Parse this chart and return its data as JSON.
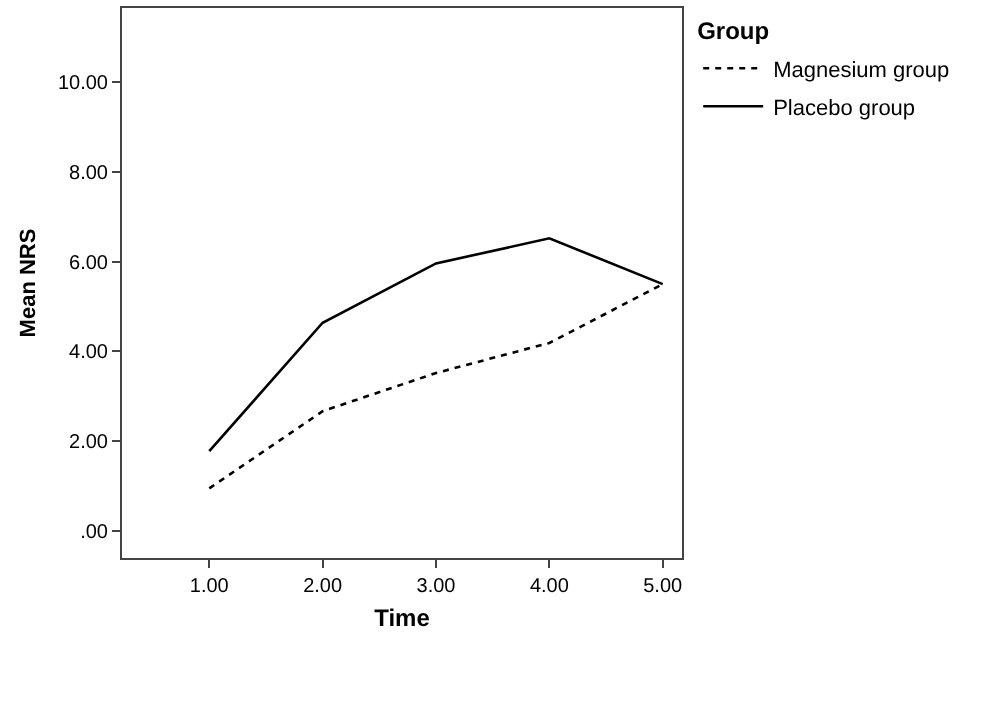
{
  "chart_data": {
    "type": "line",
    "xlabel": "Time",
    "ylabel": "Mean NRS",
    "legend_title": "Group",
    "legend": "right",
    "grid": false,
    "marker": "none",
    "x": [
      1,
      2,
      3,
      4,
      5
    ],
    "xlim": [
      0.23,
      5.17
    ],
    "xticks": [
      {
        "value": 1,
        "label": "1.00"
      },
      {
        "value": 2,
        "label": "2.00"
      },
      {
        "value": 3,
        "label": "3.00"
      },
      {
        "value": 4,
        "label": "4.00"
      },
      {
        "value": 5,
        "label": "5.00"
      }
    ],
    "ylim": [
      -0.6,
      11.65
    ],
    "yticks": [
      {
        "value": 0,
        "label": ".00"
      },
      {
        "value": 2,
        "label": "2.00"
      },
      {
        "value": 4,
        "label": "4.00"
      },
      {
        "value": 6,
        "label": "6.00"
      },
      {
        "value": 8,
        "label": "8.00"
      },
      {
        "value": 10,
        "label": "10.00"
      }
    ],
    "series": [
      {
        "name": "Magnesium group",
        "color": "#000000",
        "line_style": "dotted",
        "values": [
          0.95,
          2.67,
          3.52,
          4.19,
          5.5
        ]
      },
      {
        "name": "Placebo group",
        "color": "#000000",
        "line_style": "solid",
        "values": [
          1.78,
          4.64,
          5.96,
          6.52,
          5.5
        ]
      }
    ]
  }
}
